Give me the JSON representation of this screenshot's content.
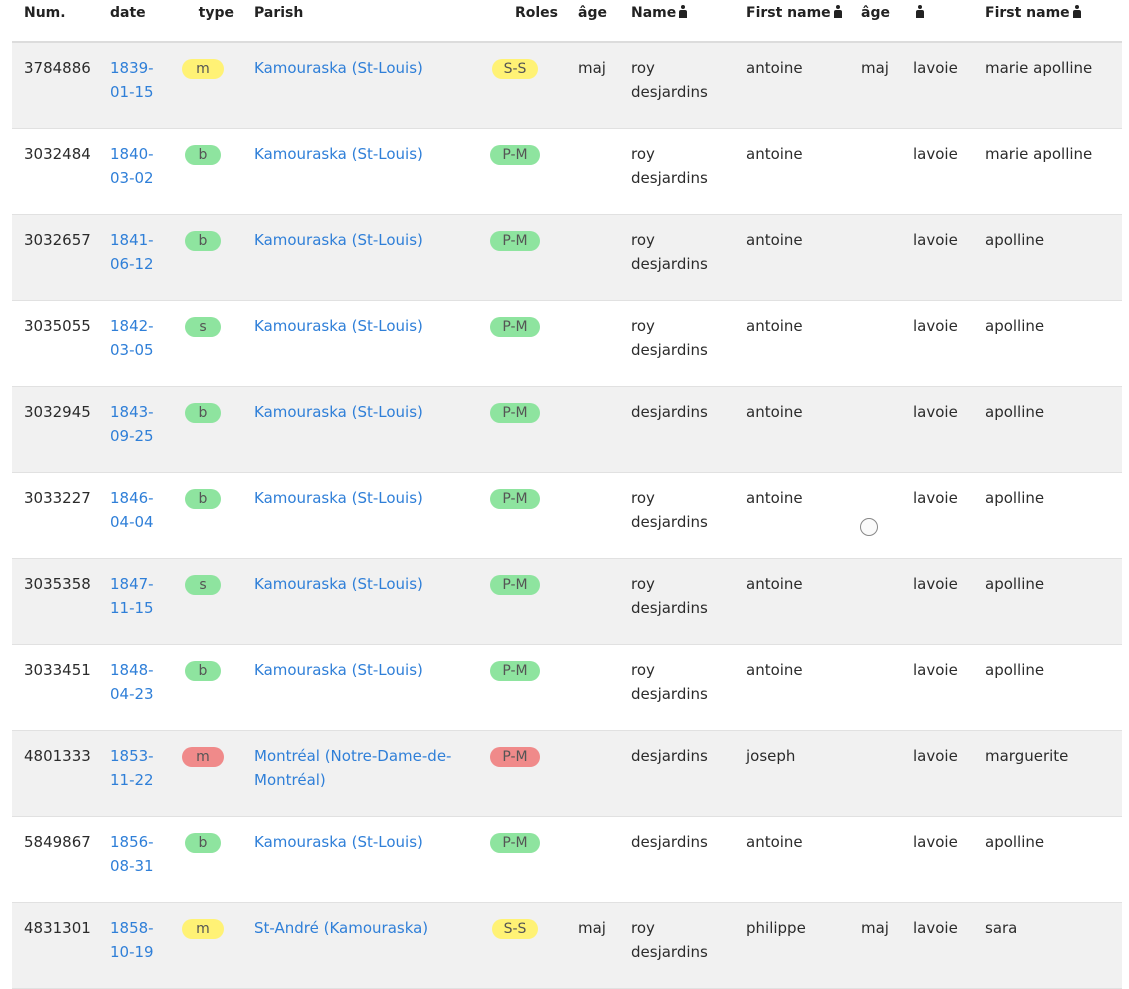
{
  "headers": {
    "num": "Num.",
    "date": "date",
    "type": "type",
    "parish": "Parish",
    "roles": "Roles",
    "age1": "âge",
    "name1": "Name",
    "first1": "First name",
    "age2": "âge",
    "name2": "",
    "first2": "First name"
  },
  "colors": {
    "yellow": "#fff275",
    "green": "#8ee49f",
    "red": "#f08a8a",
    "link": "#2f7fd8"
  },
  "rows": [
    {
      "num": "3784886",
      "date1": "1839-",
      "date2": "01-15",
      "type": "m",
      "type_color": "yellow",
      "parish": "Kamouraska (St-Louis)",
      "role": "S-S",
      "role_color": "yellow",
      "age1": "maj",
      "name1": "roy desjardins",
      "first1": "antoine",
      "age2": "maj",
      "name2": "lavoie",
      "first2": "marie apolline"
    },
    {
      "num": "3032484",
      "date1": "1840-",
      "date2": "03-02",
      "type": "b",
      "type_color": "green",
      "parish": "Kamouraska (St-Louis)",
      "role": "P-M",
      "role_color": "green",
      "age1": "",
      "name1": "roy desjardins",
      "first1": "antoine",
      "age2": "",
      "name2": "lavoie",
      "first2": "marie apolline"
    },
    {
      "num": "3032657",
      "date1": "1841-",
      "date2": "06-12",
      "type": "b",
      "type_color": "green",
      "parish": "Kamouraska (St-Louis)",
      "role": "P-M",
      "role_color": "green",
      "age1": "",
      "name1": "roy desjardins",
      "first1": "antoine",
      "age2": "",
      "name2": "lavoie",
      "first2": "apolline"
    },
    {
      "num": "3035055",
      "date1": "1842-",
      "date2": "03-05",
      "type": "s",
      "type_color": "green",
      "parish": "Kamouraska (St-Louis)",
      "role": "P-M",
      "role_color": "green",
      "age1": "",
      "name1": "roy desjardins",
      "first1": "antoine",
      "age2": "",
      "name2": "lavoie",
      "first2": "apolline"
    },
    {
      "num": "3032945",
      "date1": "1843-",
      "date2": "09-25",
      "type": "b",
      "type_color": "green",
      "parish": "Kamouraska (St-Louis)",
      "role": "P-M",
      "role_color": "green",
      "age1": "",
      "name1": "desjardins",
      "first1": "antoine",
      "age2": "",
      "name2": "lavoie",
      "first2": "apolline"
    },
    {
      "num": "3033227",
      "date1": "1846-",
      "date2": "04-04",
      "type": "b",
      "type_color": "green",
      "parish": "Kamouraska (St-Louis)",
      "role": "P-M",
      "role_color": "green",
      "age1": "",
      "name1": "roy desjardins",
      "first1": "antoine",
      "age2": "",
      "name2": "lavoie",
      "first2": "apolline"
    },
    {
      "num": "3035358",
      "date1": "1847-",
      "date2": "11-15",
      "type": "s",
      "type_color": "green",
      "parish": "Kamouraska (St-Louis)",
      "role": "P-M",
      "role_color": "green",
      "age1": "",
      "name1": "roy desjardins",
      "first1": "antoine",
      "age2": "",
      "name2": "lavoie",
      "first2": "apolline"
    },
    {
      "num": "3033451",
      "date1": "1848-",
      "date2": "04-23",
      "type": "b",
      "type_color": "green",
      "parish": "Kamouraska (St-Louis)",
      "role": "P-M",
      "role_color": "green",
      "age1": "",
      "name1": "roy desjardins",
      "first1": "antoine",
      "age2": "",
      "name2": "lavoie",
      "first2": "apolline"
    },
    {
      "num": "4801333",
      "date1": "1853-",
      "date2": "11-22",
      "type": "m",
      "type_color": "red",
      "parish": "Montréal (Notre-Dame-de-Montréal)",
      "role": "P-M",
      "role_color": "red",
      "age1": "",
      "name1": "desjardins",
      "first1": "joseph",
      "age2": "",
      "name2": "lavoie",
      "first2": "marguerite"
    },
    {
      "num": "5849867",
      "date1": "1856-",
      "date2": "08-31",
      "type": "b",
      "type_color": "green",
      "parish": "Kamouraska (St-Louis)",
      "role": "P-M",
      "role_color": "green",
      "age1": "",
      "name1": "desjardins",
      "first1": "antoine",
      "age2": "",
      "name2": "lavoie",
      "first2": "apolline"
    },
    {
      "num": "4831301",
      "date1": "1858-",
      "date2": "10-19",
      "type": "m",
      "type_color": "yellow",
      "parish": "St-André (Kamouraska)",
      "role": "S-S",
      "role_color": "yellow",
      "age1": "maj",
      "name1": "roy desjardins",
      "first1": "philippe",
      "age2": "maj",
      "name2": "lavoie",
      "first2": "sara"
    }
  ]
}
